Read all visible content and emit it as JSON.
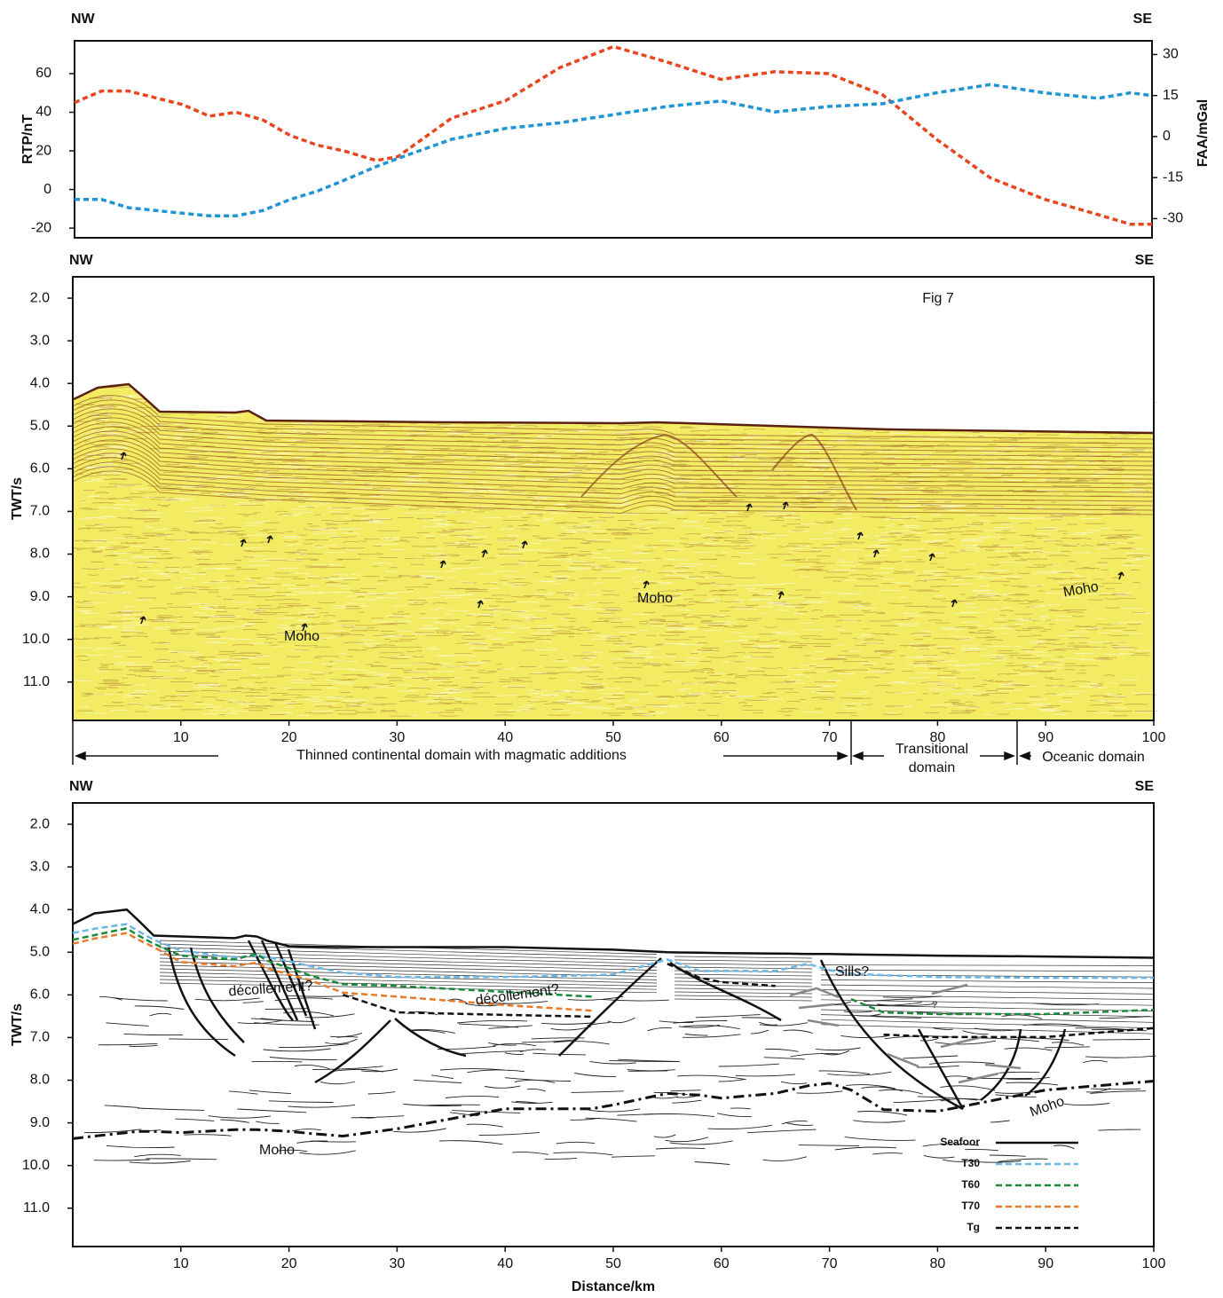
{
  "chart_data": [
    {
      "type": "line",
      "left_label": "NW",
      "right_label": "SE",
      "y_label": "RTP/nT",
      "y2_label": "FAA/mGal",
      "y_color": "#e0202a",
      "y2_color": "#1b8fd1",
      "x": [
        0,
        2.5,
        5,
        10,
        12.5,
        15,
        17.5,
        20,
        22.5,
        25,
        28,
        30,
        35,
        40,
        45,
        50,
        55,
        60,
        65,
        70,
        75,
        80,
        85,
        90,
        95,
        98,
        100
      ],
      "xlim": [
        0,
        100
      ],
      "ylim": [
        -25,
        77
      ],
      "yticks": [
        -20,
        0,
        20,
        40,
        60
      ],
      "y2lim": [
        -37,
        35
      ],
      "y2ticks": [
        -30,
        -15,
        0,
        15,
        30
      ],
      "series": [
        {
          "name": "RTP/nT",
          "color": "#e8461e",
          "style": "dashed",
          "values": [
            45,
            51,
            51,
            44,
            38,
            40,
            36,
            28,
            23,
            20,
            15,
            17,
            37,
            46,
            63,
            74,
            66,
            57,
            61,
            60,
            49,
            26,
            6,
            -5,
            -13,
            -18,
            -18
          ]
        },
        {
          "name": "FAA/mGal",
          "color": "#1e96d6",
          "style": "dashed",
          "axis": "y2",
          "values": [
            -23,
            -23,
            -26,
            -28,
            -29,
            -29,
            -27,
            -23,
            -20,
            -16,
            -11,
            -8,
            -1,
            3,
            5,
            8,
            11,
            13,
            9,
            11,
            12,
            16,
            19,
            16,
            14,
            16,
            15
          ]
        }
      ]
    },
    {
      "type": "image",
      "left_label": "NW",
      "right_label": "SE",
      "y_label": "TWT/s",
      "xlim": [
        0,
        100
      ],
      "xticks": [
        10,
        20,
        30,
        40,
        50,
        60,
        70,
        80,
        90,
        100
      ],
      "ylim": [
        11.9,
        1.5
      ],
      "yticks": [
        {
          "value": 2,
          "label": "2.0"
        },
        {
          "value": 3,
          "label": "3.0"
        },
        {
          "value": 4,
          "label": "4.0"
        },
        {
          "value": 5,
          "label": "5.0"
        },
        {
          "value": 6,
          "label": "6.0"
        },
        {
          "value": 7,
          "label": "7.0"
        },
        {
          "value": 8,
          "label": "8.0"
        },
        {
          "value": 9,
          "label": "9.0"
        },
        {
          "value": 10,
          "label": "10.0"
        },
        {
          "value": 11,
          "label": "11.0"
        }
      ],
      "annotations": [
        "Fig 7",
        "Moho",
        "Moho",
        "Moho",
        "Thinned continental domain with magmatic additions",
        "Transitional",
        "domain",
        "Oceanic  domain"
      ]
    },
    {
      "type": "line",
      "left_label": "NW",
      "right_label": "SE",
      "y_label": "TWT/s",
      "x_label": "Distance/km",
      "x": [
        0,
        2,
        5,
        6,
        7.5,
        10,
        15,
        16,
        17,
        18,
        20,
        22,
        25,
        30,
        40,
        48,
        50,
        55,
        58,
        60,
        65,
        68,
        70,
        72,
        75,
        80,
        90,
        100
      ],
      "xlim": [
        0,
        100
      ],
      "xticks": [
        10,
        20,
        30,
        40,
        50,
        60,
        70,
        80,
        90,
        100
      ],
      "ylim": [
        11.9,
        1.5
      ],
      "yticks": [
        {
          "value": 2,
          "label": "2.0"
        },
        {
          "value": 3,
          "label": "3.0"
        },
        {
          "value": 4,
          "label": "4.0"
        },
        {
          "value": 5,
          "label": "5.0"
        },
        {
          "value": 6,
          "label": "6.0"
        },
        {
          "value": 7,
          "label": "7.0"
        },
        {
          "value": 8,
          "label": "8.0"
        },
        {
          "value": 9,
          "label": "9.0"
        },
        {
          "value": 10,
          "label": "10.0"
        },
        {
          "value": 11,
          "label": "11.0"
        }
      ],
      "series": [
        {
          "name": "Seafoor",
          "color": "#111111",
          "style": "solid",
          "values": [
            4.34,
            4.09,
            4.0,
            4.24,
            4.61,
            4.63,
            4.67,
            4.61,
            4.63,
            4.73,
            4.86,
            4.87,
            4.88,
            4.88,
            4.88,
            4.93,
            4.94,
            5.0,
            5.01,
            5.02,
            5.03,
            5.04,
            5.04,
            5.05,
            5.06,
            5.08,
            5.1,
            5.13
          ]
        },
        {
          "name": "T30",
          "color": "#6bb8e8",
          "style": "dashed",
          "values": [
            4.55,
            4.45,
            4.34,
            4.5,
            4.71,
            4.96,
            5.13,
            5.1,
            5.08,
            5.12,
            5.21,
            5.33,
            5.48,
            5.58,
            5.58,
            5.54,
            5.52,
            5.17,
            5.44,
            5.44,
            5.44,
            5.27,
            5.42,
            5.5,
            5.54,
            5.58,
            5.6,
            5.6
          ]
        },
        {
          "name": "T60",
          "color": "#1a8a3a",
          "style": "dashed",
          "values": [
            4.71,
            4.6,
            4.44,
            4.6,
            4.8,
            5.08,
            5.17,
            5.1,
            5.04,
            5.2,
            5.37,
            5.55,
            5.75,
            5.79,
            5.93,
            6.04,
            null,
            null,
            null,
            null,
            null,
            null,
            null,
            6.1,
            6.41,
            6.45,
            6.45,
            6.35
          ]
        },
        {
          "name": "T70",
          "color": "#e87a2a",
          "style": "dashed",
          "values": [
            4.8,
            4.68,
            4.55,
            4.7,
            4.88,
            5.23,
            5.33,
            5.28,
            5.25,
            5.38,
            5.52,
            5.66,
            5.95,
            6.04,
            6.24,
            6.37,
            null,
            null,
            null,
            null,
            null,
            null,
            null,
            null,
            null,
            null,
            null,
            null
          ]
        },
        {
          "name": "Tg",
          "color": "#111111",
          "style": "dashed",
          "values": [
            null,
            null,
            null,
            null,
            null,
            null,
            null,
            null,
            null,
            null,
            null,
            null,
            6.0,
            6.41,
            6.47,
            6.51,
            null,
            5.27,
            5.6,
            5.7,
            5.79,
            null,
            null,
            null,
            6.93,
            6.99,
            6.99,
            6.78
          ]
        }
      ],
      "moho": [
        9.37,
        9.31,
        9.23,
        9.2,
        9.2,
        9.23,
        9.16,
        9.16,
        9.16,
        9.17,
        9.2,
        9.25,
        9.31,
        9.14,
        8.67,
        8.67,
        8.58,
        8.31,
        8.35,
        8.42,
        8.31,
        8.13,
        8.07,
        8.23,
        8.69,
        8.73,
        8.23,
        8.02
      ],
      "legend": "bottom-right",
      "annotations": [
        "décollement?",
        "décollement?",
        "Sills?",
        "?",
        "Moho",
        "Moho"
      ]
    }
  ]
}
